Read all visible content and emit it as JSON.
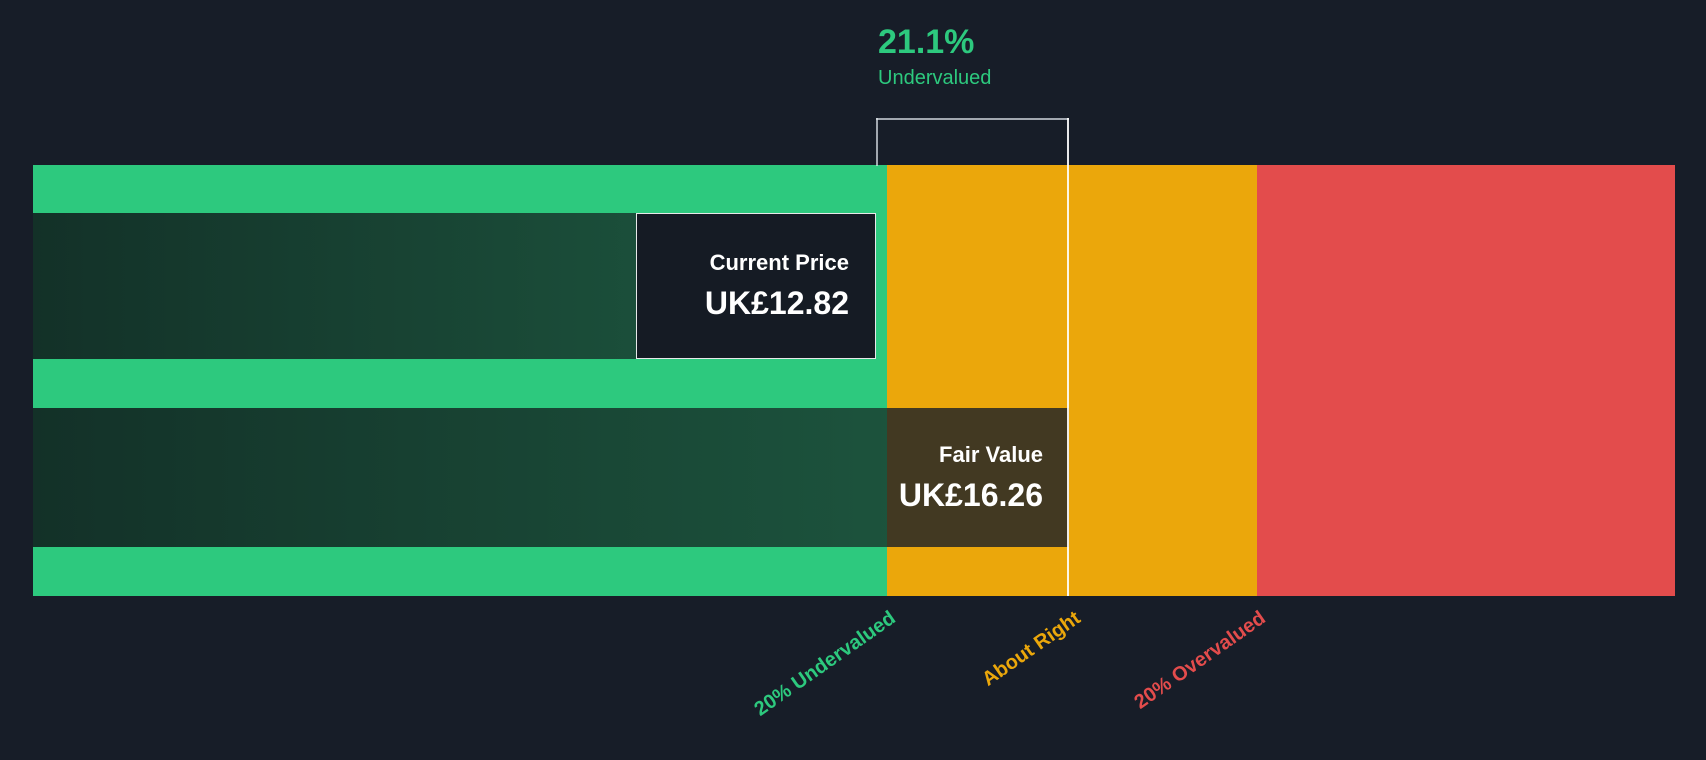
{
  "colors": {
    "background": "#171d28",
    "undervalued_green": "#2dc97e",
    "about_right_amber": "#eba70b",
    "overvalued_red": "#e34c4c",
    "bar_dark_green": "#1e5a41",
    "fair_value_box_olive": "#423922"
  },
  "chart_data": {
    "type": "bar",
    "currency": "UK£",
    "series": [
      {
        "name": "Current Price",
        "value": 12.82,
        "display": "UK£12.82"
      },
      {
        "name": "Fair Value",
        "value": 16.26,
        "display": "UK£16.26"
      }
    ],
    "discount": {
      "percent": 21.1,
      "percent_display": "21.1%",
      "label": "Undervalued"
    },
    "zones": [
      {
        "label": "20% Undervalued",
        "color": "#2dc97e"
      },
      {
        "label": "About Right",
        "color": "#eba70b"
      },
      {
        "label": "20% Overvalued",
        "color": "#e34c4c"
      }
    ],
    "legend_position": "bottom",
    "grid": false
  }
}
